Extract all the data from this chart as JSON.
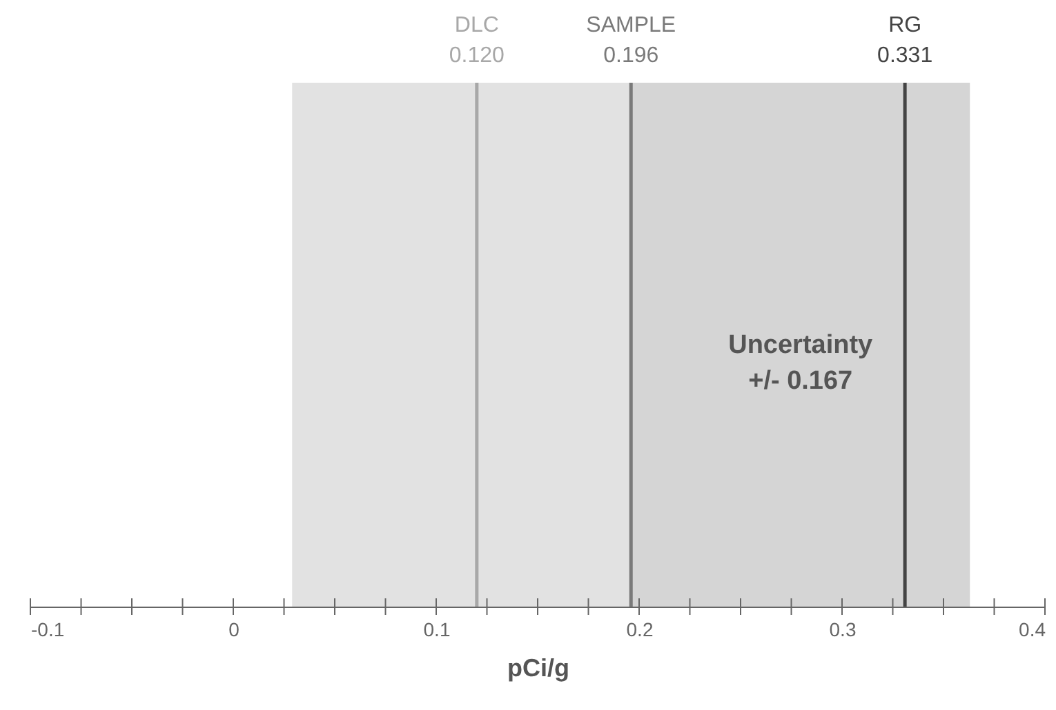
{
  "chart_data": {
    "type": "bar",
    "orientation": "horizontal",
    "categories": [
      null
    ],
    "base": [
      0.029
    ],
    "values": [
      0.334
    ],
    "color": "#e2e2e2",
    "xlabel": "pCi/g",
    "xlim": [
      -0.1,
      0.4
    ],
    "xticks": [
      -0.1,
      {
        "value": -0.075,
        "label": null
      },
      {
        "value": -0.05,
        "label": null
      },
      {
        "value": -0.025,
        "label": null
      },
      0,
      {
        "value": 0.025,
        "label": null
      },
      {
        "value": 0.05,
        "label": null
      },
      {
        "value": 0.075,
        "label": null
      },
      0.1,
      {
        "value": 0.125,
        "label": null
      },
      {
        "value": 0.15,
        "label": null
      },
      {
        "value": 0.175,
        "label": null
      },
      0.2,
      {
        "value": 0.225,
        "label": null
      },
      {
        "value": 0.25,
        "label": null
      },
      {
        "value": 0.275,
        "label": null
      },
      0.3,
      {
        "value": 0.325,
        "label": null
      },
      {
        "value": 0.35,
        "label": null
      },
      {
        "value": 0.375,
        "label": null
      },
      0.4
    ],
    "tick_labels": "x",
    "bands": [
      {
        "axis": "x",
        "from": 0.196,
        "to": 0.363,
        "label": "Uncertainty\n+/- 0.167",
        "color": "#bdbdbd"
      }
    ],
    "ref_lines": [
      {
        "axis": "x",
        "value": 0.12,
        "label": "DLC\n0.120",
        "color": "#a8a8a8"
      },
      {
        "axis": "x",
        "value": 0.196,
        "label": "SAMPLE\n0.196",
        "color": "#7a7a7a"
      },
      {
        "axis": "x",
        "value": 0.331,
        "label": "RG\n0.331",
        "color": "#444444"
      }
    ]
  }
}
